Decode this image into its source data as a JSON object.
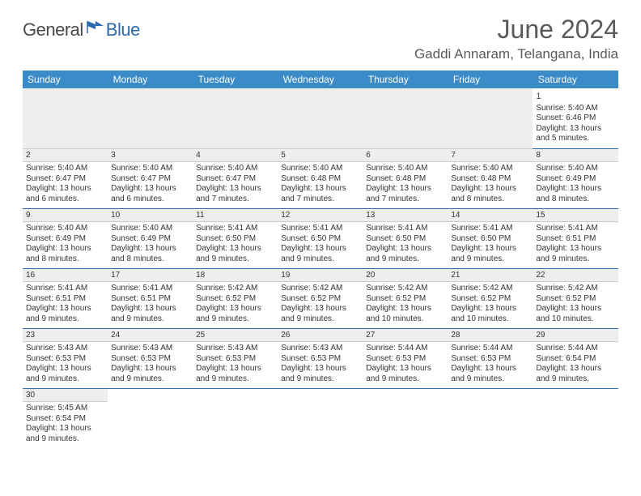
{
  "logo": {
    "general": "General",
    "blue": "Blue"
  },
  "title": "June 2024",
  "location": "Gaddi Annaram, Telangana, India",
  "colors": {
    "header_bg": "#3b8bc9",
    "header_text": "#ffffff",
    "row_divider": "#2a6bb0",
    "daynum_bg": "#eeeeee",
    "text": "#333333",
    "title_text": "#5a5a5a",
    "logo_general": "#4a4a4a",
    "logo_blue": "#2a6bb0"
  },
  "weekdays": [
    "Sunday",
    "Monday",
    "Tuesday",
    "Wednesday",
    "Thursday",
    "Friday",
    "Saturday"
  ],
  "weeks": [
    [
      null,
      null,
      null,
      null,
      null,
      null,
      {
        "d": "1",
        "sr": "Sunrise: 5:40 AM",
        "ss": "Sunset: 6:46 PM",
        "dl1": "Daylight: 13 hours",
        "dl2": "and 5 minutes."
      }
    ],
    [
      {
        "d": "2",
        "sr": "Sunrise: 5:40 AM",
        "ss": "Sunset: 6:47 PM",
        "dl1": "Daylight: 13 hours",
        "dl2": "and 6 minutes."
      },
      {
        "d": "3",
        "sr": "Sunrise: 5:40 AM",
        "ss": "Sunset: 6:47 PM",
        "dl1": "Daylight: 13 hours",
        "dl2": "and 6 minutes."
      },
      {
        "d": "4",
        "sr": "Sunrise: 5:40 AM",
        "ss": "Sunset: 6:47 PM",
        "dl1": "Daylight: 13 hours",
        "dl2": "and 7 minutes."
      },
      {
        "d": "5",
        "sr": "Sunrise: 5:40 AM",
        "ss": "Sunset: 6:48 PM",
        "dl1": "Daylight: 13 hours",
        "dl2": "and 7 minutes."
      },
      {
        "d": "6",
        "sr": "Sunrise: 5:40 AM",
        "ss": "Sunset: 6:48 PM",
        "dl1": "Daylight: 13 hours",
        "dl2": "and 7 minutes."
      },
      {
        "d": "7",
        "sr": "Sunrise: 5:40 AM",
        "ss": "Sunset: 6:48 PM",
        "dl1": "Daylight: 13 hours",
        "dl2": "and 8 minutes."
      },
      {
        "d": "8",
        "sr": "Sunrise: 5:40 AM",
        "ss": "Sunset: 6:49 PM",
        "dl1": "Daylight: 13 hours",
        "dl2": "and 8 minutes."
      }
    ],
    [
      {
        "d": "9",
        "sr": "Sunrise: 5:40 AM",
        "ss": "Sunset: 6:49 PM",
        "dl1": "Daylight: 13 hours",
        "dl2": "and 8 minutes."
      },
      {
        "d": "10",
        "sr": "Sunrise: 5:40 AM",
        "ss": "Sunset: 6:49 PM",
        "dl1": "Daylight: 13 hours",
        "dl2": "and 8 minutes."
      },
      {
        "d": "11",
        "sr": "Sunrise: 5:41 AM",
        "ss": "Sunset: 6:50 PM",
        "dl1": "Daylight: 13 hours",
        "dl2": "and 9 minutes."
      },
      {
        "d": "12",
        "sr": "Sunrise: 5:41 AM",
        "ss": "Sunset: 6:50 PM",
        "dl1": "Daylight: 13 hours",
        "dl2": "and 9 minutes."
      },
      {
        "d": "13",
        "sr": "Sunrise: 5:41 AM",
        "ss": "Sunset: 6:50 PM",
        "dl1": "Daylight: 13 hours",
        "dl2": "and 9 minutes."
      },
      {
        "d": "14",
        "sr": "Sunrise: 5:41 AM",
        "ss": "Sunset: 6:50 PM",
        "dl1": "Daylight: 13 hours",
        "dl2": "and 9 minutes."
      },
      {
        "d": "15",
        "sr": "Sunrise: 5:41 AM",
        "ss": "Sunset: 6:51 PM",
        "dl1": "Daylight: 13 hours",
        "dl2": "and 9 minutes."
      }
    ],
    [
      {
        "d": "16",
        "sr": "Sunrise: 5:41 AM",
        "ss": "Sunset: 6:51 PM",
        "dl1": "Daylight: 13 hours",
        "dl2": "and 9 minutes."
      },
      {
        "d": "17",
        "sr": "Sunrise: 5:41 AM",
        "ss": "Sunset: 6:51 PM",
        "dl1": "Daylight: 13 hours",
        "dl2": "and 9 minutes."
      },
      {
        "d": "18",
        "sr": "Sunrise: 5:42 AM",
        "ss": "Sunset: 6:52 PM",
        "dl1": "Daylight: 13 hours",
        "dl2": "and 9 minutes."
      },
      {
        "d": "19",
        "sr": "Sunrise: 5:42 AM",
        "ss": "Sunset: 6:52 PM",
        "dl1": "Daylight: 13 hours",
        "dl2": "and 9 minutes."
      },
      {
        "d": "20",
        "sr": "Sunrise: 5:42 AM",
        "ss": "Sunset: 6:52 PM",
        "dl1": "Daylight: 13 hours",
        "dl2": "and 10 minutes."
      },
      {
        "d": "21",
        "sr": "Sunrise: 5:42 AM",
        "ss": "Sunset: 6:52 PM",
        "dl1": "Daylight: 13 hours",
        "dl2": "and 10 minutes."
      },
      {
        "d": "22",
        "sr": "Sunrise: 5:42 AM",
        "ss": "Sunset: 6:52 PM",
        "dl1": "Daylight: 13 hours",
        "dl2": "and 10 minutes."
      }
    ],
    [
      {
        "d": "23",
        "sr": "Sunrise: 5:43 AM",
        "ss": "Sunset: 6:53 PM",
        "dl1": "Daylight: 13 hours",
        "dl2": "and 9 minutes."
      },
      {
        "d": "24",
        "sr": "Sunrise: 5:43 AM",
        "ss": "Sunset: 6:53 PM",
        "dl1": "Daylight: 13 hours",
        "dl2": "and 9 minutes."
      },
      {
        "d": "25",
        "sr": "Sunrise: 5:43 AM",
        "ss": "Sunset: 6:53 PM",
        "dl1": "Daylight: 13 hours",
        "dl2": "and 9 minutes."
      },
      {
        "d": "26",
        "sr": "Sunrise: 5:43 AM",
        "ss": "Sunset: 6:53 PM",
        "dl1": "Daylight: 13 hours",
        "dl2": "and 9 minutes."
      },
      {
        "d": "27",
        "sr": "Sunrise: 5:44 AM",
        "ss": "Sunset: 6:53 PM",
        "dl1": "Daylight: 13 hours",
        "dl2": "and 9 minutes."
      },
      {
        "d": "28",
        "sr": "Sunrise: 5:44 AM",
        "ss": "Sunset: 6:53 PM",
        "dl1": "Daylight: 13 hours",
        "dl2": "and 9 minutes."
      },
      {
        "d": "29",
        "sr": "Sunrise: 5:44 AM",
        "ss": "Sunset: 6:54 PM",
        "dl1": "Daylight: 13 hours",
        "dl2": "and 9 minutes."
      }
    ],
    [
      {
        "d": "30",
        "sr": "Sunrise: 5:45 AM",
        "ss": "Sunset: 6:54 PM",
        "dl1": "Daylight: 13 hours",
        "dl2": "and 9 minutes."
      },
      null,
      null,
      null,
      null,
      null,
      null
    ]
  ]
}
